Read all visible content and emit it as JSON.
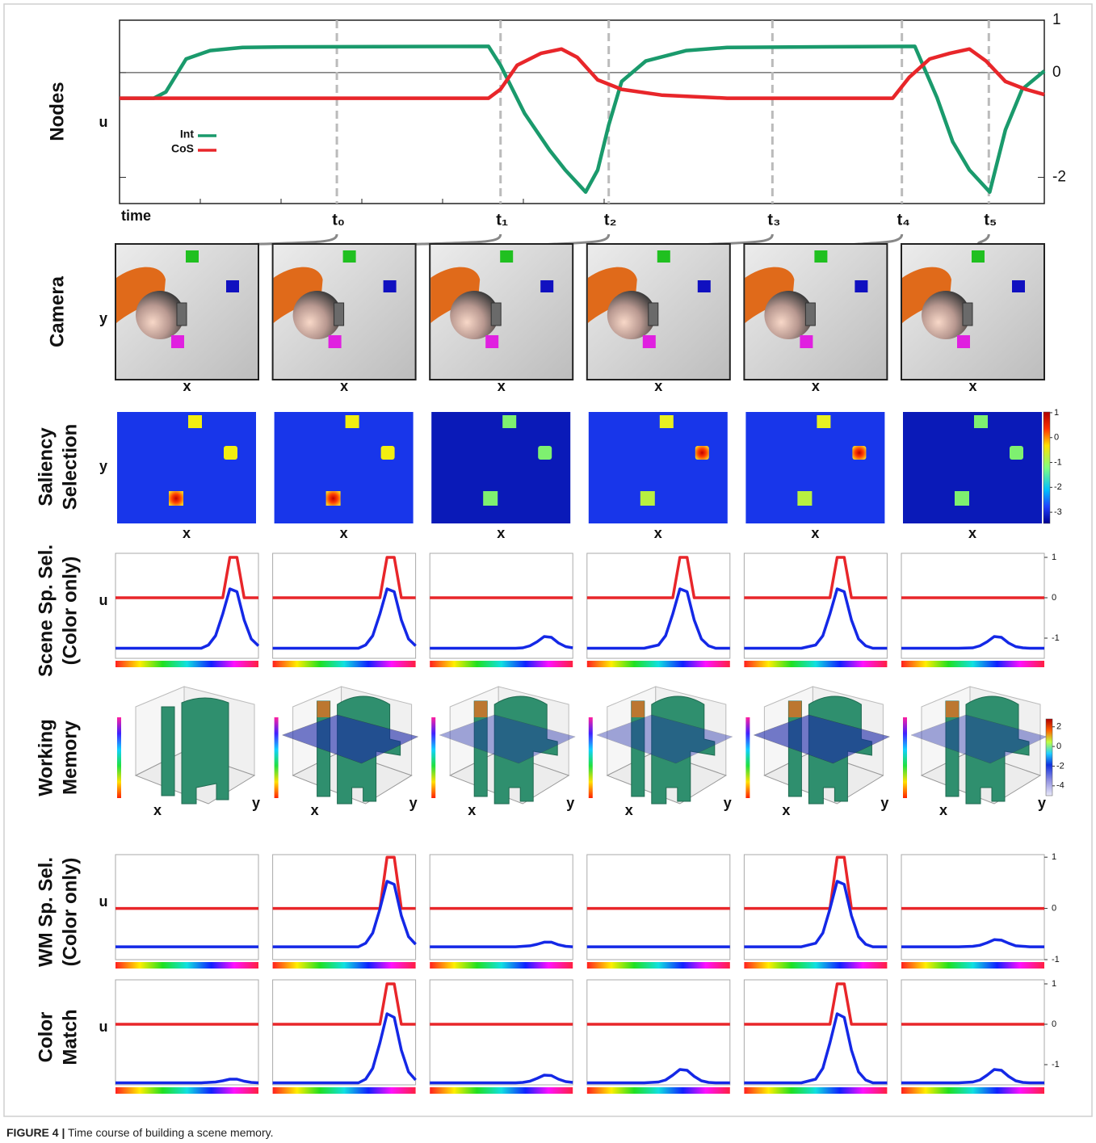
{
  "chart_data": [
    {
      "type": "line",
      "row_label": [
        "Nodes"
      ],
      "ylabel": "u",
      "xlabel": "time",
      "xlim": [
        0,
        100
      ],
      "ylim": [
        -2.5,
        1
      ],
      "yticks": [
        1,
        0,
        -2
      ],
      "series": [
        {
          "name": "Int",
          "color": "#1a9a6c",
          "x": [
            0,
            3.7,
            5,
            7.2,
            9.8,
            13.3,
            17.6,
            39.9,
            41.2,
            43.8,
            46.5,
            48.2,
            50.4,
            51.7,
            52.9,
            54.3,
            56.9,
            61.3,
            65.7,
            86,
            88.4,
            90.1,
            91.9,
            94.1,
            95.8,
            97.6,
            100
          ],
          "values": [
            -0.49,
            -0.49,
            -0.37,
            0.26,
            0.42,
            0.48,
            0.49,
            0.5,
            0.14,
            -0.78,
            -1.48,
            -1.86,
            -2.28,
            -1.86,
            -1.0,
            -0.17,
            0.22,
            0.42,
            0.48,
            0.5,
            -0.48,
            -1.32,
            -1.86,
            -2.28,
            -1.09,
            -0.32,
            0.03
          ]
        },
        {
          "name": "CoS",
          "color": "#e8262a",
          "x": [
            0,
            39.9,
            41.2,
            43,
            45.6,
            47.8,
            49.5,
            51.7,
            54.3,
            58.6,
            65.7,
            83.6,
            85.4,
            87.6,
            89.8,
            91.9,
            93.7,
            95.8,
            98,
            100
          ],
          "values": [
            -0.49,
            -0.49,
            -0.32,
            0.14,
            0.37,
            0.45,
            0.29,
            -0.14,
            -0.32,
            -0.43,
            -0.49,
            -0.49,
            -0.09,
            0.26,
            0.37,
            0.45,
            0.22,
            -0.17,
            -0.32,
            -0.42
          ]
        }
      ],
      "markers": [
        {
          "label": "t₀",
          "x": 23.5
        },
        {
          "label": "t₁",
          "x": 41.2
        },
        {
          "label": "t₂",
          "x": 52.9
        },
        {
          "label": "t₃",
          "x": 70.6
        },
        {
          "label": "t₄",
          "x": 84.6
        },
        {
          "label": "t₅",
          "x": 94.0
        }
      ]
    },
    {
      "type": "image",
      "row_label": [
        "Camera"
      ],
      "xlabel": "x",
      "ylabel": "y"
    },
    {
      "type": "heatmap",
      "row_label": [
        "Saliency",
        "Selection"
      ],
      "xlabel": "x",
      "ylabel": "y",
      "colorbar": {
        "lim": [
          -3.45,
          1.03
        ],
        "ticks": [
          1,
          0,
          -1,
          -2,
          -3
        ]
      }
    },
    {
      "type": "line-grid",
      "row_label": [
        "Scene Sp. Sel.",
        "(Color only)"
      ],
      "ylabel": "u",
      "colors": [
        "#e8262a",
        "#1428e6"
      ],
      "xlim": [
        0,
        1
      ],
      "ylim": [
        -1.5,
        1.1
      ],
      "yticks": [
        1,
        0,
        -1
      ],
      "x": [
        0,
        0.2,
        0.4,
        0.5,
        0.55,
        0.6,
        0.65,
        0.7,
        0.75,
        0.8,
        0.85,
        0.9,
        0.95,
        1
      ],
      "panels": [
        [
          [
            0,
            0,
            0,
            0,
            0,
            0,
            0,
            0,
            0,
            1,
            1,
            0,
            0,
            0
          ],
          [
            -1.25,
            -1.25,
            -1.25,
            -1.25,
            -1.25,
            -1.25,
            -1.17,
            -0.94,
            -0.4,
            0.22,
            0.15,
            -0.55,
            -1.02,
            -1.19
          ]
        ],
        [
          [
            0,
            0,
            0,
            0,
            0,
            0,
            0,
            0,
            0,
            1,
            1,
            0,
            0,
            0
          ],
          [
            -1.25,
            -1.25,
            -1.25,
            -1.25,
            -1.25,
            -1.25,
            -1.17,
            -0.94,
            -0.4,
            0.22,
            0.15,
            -0.55,
            -1.02,
            -1.19
          ]
        ],
        [
          [
            0,
            0,
            0,
            0,
            0,
            0,
            0,
            0,
            0,
            0,
            0,
            0,
            0,
            0
          ],
          [
            -1.25,
            -1.25,
            -1.25,
            -1.25,
            -1.25,
            -1.25,
            -1.24,
            -1.19,
            -1.09,
            -0.96,
            -0.98,
            -1.12,
            -1.21,
            -1.24
          ]
        ],
        [
          [
            0,
            0,
            0,
            0,
            0,
            0,
            1,
            1,
            0,
            0,
            0,
            0,
            0,
            0
          ],
          [
            -1.25,
            -1.25,
            -1.25,
            -1.17,
            -0.94,
            -0.4,
            0.22,
            0.15,
            -0.55,
            -1.02,
            -1.19,
            -1.25,
            -1.25,
            -1.25
          ]
        ],
        [
          [
            0,
            0,
            0,
            0,
            0,
            0,
            1,
            1,
            0,
            0,
            0,
            0,
            0,
            0
          ],
          [
            -1.25,
            -1.25,
            -1.25,
            -1.17,
            -0.94,
            -0.4,
            0.22,
            0.15,
            -0.55,
            -1.02,
            -1.19,
            -1.25,
            -1.25,
            -1.25
          ]
        ],
        [
          [
            0,
            0,
            0,
            0,
            0,
            0,
            0,
            0,
            0,
            0,
            0,
            0,
            0,
            0
          ],
          [
            -1.25,
            -1.25,
            -1.25,
            -1.24,
            -1.19,
            -1.09,
            -0.96,
            -0.98,
            -1.12,
            -1.21,
            -1.24,
            -1.25,
            -1.25,
            -1.25
          ]
        ]
      ]
    },
    {
      "type": "volume",
      "row_label": [
        "Working",
        "Memory"
      ],
      "xlabel": "x",
      "ylabel": "y",
      "colorbar": {
        "lim": [
          -5,
          2.8
        ],
        "ticks": [
          2,
          0,
          -2,
          -4
        ]
      }
    },
    {
      "type": "line-grid",
      "row_label": [
        "WM Sp. Sel.",
        "(Color only)"
      ],
      "ylabel": "u",
      "colors": [
        "#e8262a",
        "#1428e6"
      ],
      "xlim": [
        0,
        1
      ],
      "ylim": [
        -1,
        1.05
      ],
      "yticks": [
        1,
        0,
        -1
      ],
      "x": [
        0,
        0.2,
        0.4,
        0.5,
        0.55,
        0.6,
        0.65,
        0.7,
        0.75,
        0.8,
        0.85,
        0.9,
        0.95,
        1
      ],
      "panels": [
        [
          [
            0,
            0,
            0,
            0,
            0,
            0,
            0,
            0,
            0,
            0,
            0,
            0,
            0,
            0
          ],
          [
            -0.75,
            -0.75,
            -0.75,
            -0.75,
            -0.75,
            -0.75,
            -0.75,
            -0.75,
            -0.75,
            -0.75,
            -0.75,
            -0.75,
            -0.75,
            -0.75
          ]
        ],
        [
          [
            0,
            0,
            0,
            0,
            0,
            0,
            0,
            0,
            0,
            1,
            1,
            0,
            0,
            0
          ],
          [
            -0.75,
            -0.75,
            -0.75,
            -0.75,
            -0.75,
            -0.75,
            -0.68,
            -0.48,
            -0.01,
            0.53,
            0.47,
            -0.14,
            -0.55,
            -0.7
          ]
        ],
        [
          [
            0,
            0,
            0,
            0,
            0,
            0,
            0,
            0,
            0,
            0,
            0,
            0,
            0,
            0
          ],
          [
            -0.75,
            -0.75,
            -0.75,
            -0.75,
            -0.75,
            -0.75,
            -0.74,
            -0.73,
            -0.7,
            -0.66,
            -0.66,
            -0.71,
            -0.74,
            -0.75
          ]
        ],
        [
          [
            0,
            0,
            0,
            0,
            0,
            0,
            0,
            0,
            0,
            0,
            0,
            0,
            0,
            0
          ],
          [
            -0.75,
            -0.75,
            -0.75,
            -0.75,
            -0.75,
            -0.75,
            -0.75,
            -0.75,
            -0.75,
            -0.75,
            -0.75,
            -0.75,
            -0.75,
            -0.75
          ]
        ],
        [
          [
            0,
            0,
            0,
            0,
            0,
            0,
            1,
            1,
            0,
            0,
            0,
            0,
            0,
            0
          ],
          [
            -0.75,
            -0.75,
            -0.75,
            -0.68,
            -0.48,
            -0.01,
            0.53,
            0.47,
            -0.14,
            -0.55,
            -0.7,
            -0.75,
            -0.75,
            -0.75
          ]
        ],
        [
          [
            0,
            0,
            0,
            0,
            0,
            0,
            0,
            0,
            0,
            0,
            0,
            0,
            0,
            0
          ],
          [
            -0.75,
            -0.75,
            -0.75,
            -0.74,
            -0.72,
            -0.67,
            -0.61,
            -0.62,
            -0.68,
            -0.73,
            -0.74,
            -0.75,
            -0.75,
            -0.75
          ]
        ]
      ]
    },
    {
      "type": "line-grid",
      "row_label": [
        "Color",
        "Match"
      ],
      "ylabel": "u",
      "colors": [
        "#e8262a",
        "#1428e6"
      ],
      "xlim": [
        0,
        1
      ],
      "ylim": [
        -1.5,
        1.1
      ],
      "yticks": [
        1,
        0,
        -1
      ],
      "x": [
        0,
        0.2,
        0.4,
        0.5,
        0.55,
        0.6,
        0.65,
        0.7,
        0.75,
        0.8,
        0.85,
        0.9,
        0.95,
        1
      ],
      "panels": [
        [
          [
            0,
            0,
            0,
            0,
            0,
            0,
            0,
            0,
            0,
            0,
            0,
            0,
            0,
            0
          ],
          [
            -1.45,
            -1.45,
            -1.45,
            -1.45,
            -1.45,
            -1.45,
            -1.44,
            -1.43,
            -1.4,
            -1.36,
            -1.36,
            -1.41,
            -1.44,
            -1.45
          ]
        ],
        [
          [
            0,
            0,
            0,
            0,
            0,
            0,
            0,
            0,
            0,
            1,
            1,
            0,
            0,
            0
          ],
          [
            -1.45,
            -1.45,
            -1.45,
            -1.45,
            -1.45,
            -1.45,
            -1.36,
            -1.09,
            -0.46,
            0.26,
            0.17,
            -0.64,
            -1.18,
            -1.38
          ]
        ],
        [
          [
            0,
            0,
            0,
            0,
            0,
            0,
            0,
            0,
            0,
            0,
            0,
            0,
            0,
            0
          ],
          [
            -1.45,
            -1.45,
            -1.45,
            -1.45,
            -1.45,
            -1.45,
            -1.44,
            -1.41,
            -1.34,
            -1.26,
            -1.27,
            -1.36,
            -1.42,
            -1.44
          ]
        ],
        [
          [
            0,
            0,
            0,
            0,
            0,
            0,
            0,
            0,
            0,
            0,
            0,
            0,
            0,
            0
          ],
          [
            -1.45,
            -1.45,
            -1.45,
            -1.43,
            -1.38,
            -1.26,
            -1.12,
            -1.14,
            -1.29,
            -1.4,
            -1.44,
            -1.45,
            -1.45,
            -1.45
          ]
        ],
        [
          [
            0,
            0,
            0,
            0,
            0,
            0,
            1,
            1,
            0,
            0,
            0,
            0,
            0,
            0
          ],
          [
            -1.45,
            -1.45,
            -1.45,
            -1.36,
            -1.09,
            -0.46,
            0.26,
            0.17,
            -0.64,
            -1.18,
            -1.38,
            -1.45,
            -1.45,
            -1.45
          ]
        ],
        [
          [
            0,
            0,
            0,
            0,
            0,
            0,
            0,
            0,
            0,
            0,
            0,
            0,
            0,
            0
          ],
          [
            -1.45,
            -1.45,
            -1.45,
            -1.43,
            -1.38,
            -1.26,
            -1.12,
            -1.14,
            -1.29,
            -1.4,
            -1.44,
            -1.45,
            -1.45,
            -1.45
          ]
        ]
      ]
    }
  ],
  "caption": {
    "label": "FIGURE 4 |",
    "text": "Time course of building a scene memory."
  }
}
